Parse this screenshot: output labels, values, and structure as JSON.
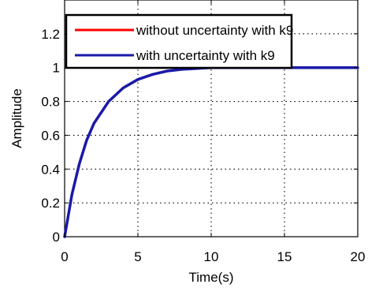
{
  "chart_data": {
    "type": "line",
    "title": "",
    "xlabel": "Time(s)",
    "ylabel": "Amplitude",
    "xlim": [
      0,
      20
    ],
    "ylim": [
      0,
      1.4
    ],
    "xticks": [
      0,
      5,
      10,
      15,
      20
    ],
    "yticks": [
      0,
      0.2,
      0.4,
      0.6,
      0.8,
      1,
      1.2
    ],
    "xtick_labels": [
      "0",
      "5",
      "10",
      "15",
      "20"
    ],
    "ytick_labels": [
      "0",
      "0.2",
      "0.4",
      "0.6",
      "0.8",
      "1",
      "1.2"
    ],
    "grid": true,
    "legend_position": "top",
    "reference_line": {
      "y": 1,
      "style": "dotted"
    },
    "series": [
      {
        "name": "without uncertainty with k9",
        "color": "#ff0000",
        "x": [
          0,
          0.5,
          1,
          1.5,
          2,
          3,
          4,
          5,
          6,
          7,
          8,
          10,
          12,
          15,
          18,
          20
        ],
        "y": [
          0,
          0.25,
          0.43,
          0.57,
          0.67,
          0.8,
          0.88,
          0.93,
          0.96,
          0.98,
          0.99,
          1,
          1,
          1,
          1,
          1
        ]
      },
      {
        "name": "with uncertainty with k9",
        "color": "#1a1aa8",
        "x": [
          0,
          0.5,
          1,
          1.5,
          2,
          3,
          4,
          5,
          6,
          7,
          8,
          10,
          12,
          15,
          18,
          20
        ],
        "y": [
          0,
          0.25,
          0.43,
          0.57,
          0.67,
          0.8,
          0.88,
          0.93,
          0.96,
          0.98,
          0.99,
          1,
          1,
          1,
          1,
          1
        ]
      }
    ]
  }
}
